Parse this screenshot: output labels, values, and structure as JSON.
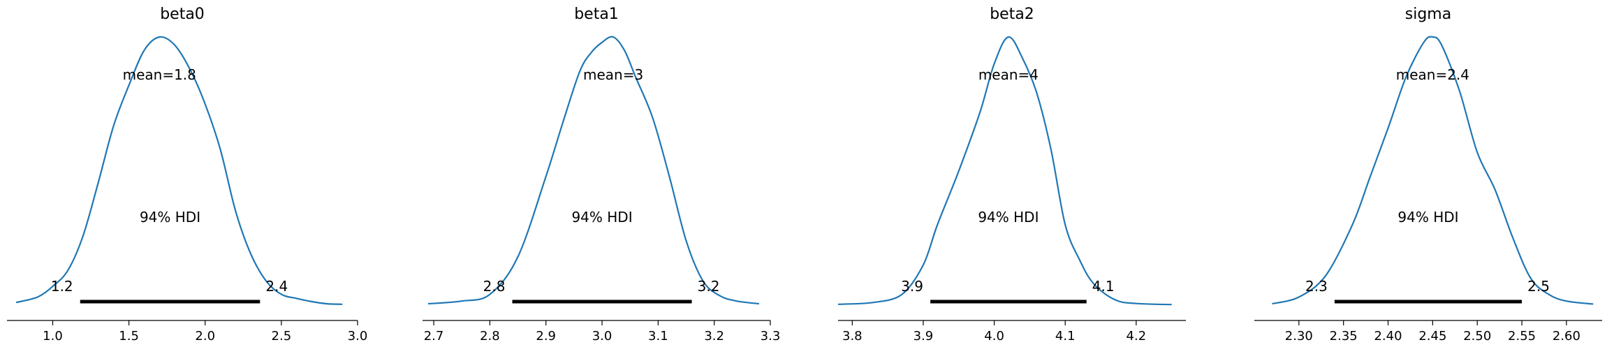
{
  "chart_data": [
    {
      "type": "line",
      "title": "beta0",
      "xlim": [
        0.7,
        3.0
      ],
      "xticks": [
        1.0,
        1.5,
        2.0,
        2.5,
        3.0
      ],
      "xtick_labels": [
        "1.0",
        "1.5",
        "2.0",
        "2.5",
        "3.0"
      ],
      "mean_label": "mean=1.8",
      "hdi_label": "94% HDI",
      "hdi": [
        1.18,
        2.36
      ],
      "hdi_low_label": "1.2",
      "hdi_high_label": "2.4",
      "series": [
        {
          "x": [
            0.76,
            0.9,
            1.0,
            1.1,
            1.2,
            1.3,
            1.4,
            1.5,
            1.6,
            1.7,
            1.8,
            1.9,
            2.0,
            2.1,
            2.2,
            2.3,
            2.4,
            2.5,
            2.6,
            2.7,
            2.8,
            2.9
          ],
          "y": [
            0.01,
            0.03,
            0.07,
            0.13,
            0.26,
            0.46,
            0.67,
            0.82,
            0.95,
            1.0,
            0.97,
            0.88,
            0.75,
            0.58,
            0.35,
            0.19,
            0.09,
            0.04,
            0.025,
            0.013,
            0.005,
            0.003
          ]
        }
      ]
    },
    {
      "type": "line",
      "title": "beta1",
      "xlim": [
        2.68,
        3.3
      ],
      "xticks": [
        2.7,
        2.8,
        2.9,
        3.0,
        3.1,
        3.2,
        3.3
      ],
      "xtick_labels": [
        "2.7",
        "2.8",
        "2.9",
        "3.0",
        "3.1",
        "3.2",
        "3.3"
      ],
      "mean_label": "mean=3",
      "hdi_label": "94% HDI",
      "hdi": [
        2.84,
        3.16
      ],
      "hdi_low_label": "2.8",
      "hdi_high_label": "3.2",
      "series": [
        {
          "x": [
            2.69,
            2.75,
            2.8,
            2.85,
            2.9,
            2.93,
            2.96,
            2.98,
            3.0,
            3.02,
            3.04,
            3.06,
            3.09,
            3.12,
            3.15,
            3.18,
            3.21,
            3.24,
            3.28
          ],
          "y": [
            0.005,
            0.015,
            0.04,
            0.18,
            0.48,
            0.68,
            0.87,
            0.94,
            0.98,
            1.0,
            0.95,
            0.85,
            0.7,
            0.48,
            0.24,
            0.09,
            0.035,
            0.015,
            0.005
          ]
        }
      ]
    },
    {
      "type": "line",
      "title": "beta2",
      "xlim": [
        3.78,
        4.27
      ],
      "xticks": [
        3.8,
        3.9,
        4.0,
        4.1,
        4.2
      ],
      "xtick_labels": [
        "3.8",
        "3.9",
        "4.0",
        "4.1",
        "4.2"
      ],
      "mean_label": "mean=4",
      "hdi_label": "94% HDI",
      "hdi": [
        3.91,
        4.13
      ],
      "hdi_low_label": "3.9",
      "hdi_high_label": "4.1",
      "series": [
        {
          "x": [
            3.78,
            3.83,
            3.87,
            3.9,
            3.92,
            3.95,
            3.98,
            4.0,
            4.02,
            4.04,
            4.06,
            4.08,
            4.1,
            4.12,
            4.14,
            4.17,
            4.2,
            4.25
          ],
          "y": [
            0.003,
            0.01,
            0.04,
            0.15,
            0.3,
            0.5,
            0.72,
            0.9,
            1.0,
            0.92,
            0.79,
            0.58,
            0.3,
            0.17,
            0.08,
            0.02,
            0.006,
            0.002
          ]
        }
      ]
    },
    {
      "type": "line",
      "title": "sigma",
      "xlim": [
        2.25,
        2.64
      ],
      "xticks": [
        2.3,
        2.35,
        2.4,
        2.45,
        2.5,
        2.55,
        2.6
      ],
      "xtick_labels": [
        "2.30",
        "2.35",
        "2.40",
        "2.45",
        "2.50",
        "2.55",
        "2.60"
      ],
      "mean_label": "mean=2.4",
      "hdi_label": "94% HDI",
      "hdi": [
        2.34,
        2.55
      ],
      "hdi_low_label": "2.3",
      "hdi_high_label": "2.5",
      "series": [
        {
          "x": [
            2.27,
            2.3,
            2.33,
            2.36,
            2.38,
            2.4,
            2.42,
            2.44,
            2.45,
            2.46,
            2.48,
            2.5,
            2.52,
            2.54,
            2.56,
            2.58,
            2.6,
            2.63
          ],
          "y": [
            0.005,
            0.03,
            0.11,
            0.3,
            0.48,
            0.66,
            0.85,
            0.98,
            1.0,
            0.97,
            0.8,
            0.57,
            0.43,
            0.25,
            0.1,
            0.04,
            0.015,
            0.004
          ]
        }
      ]
    }
  ]
}
